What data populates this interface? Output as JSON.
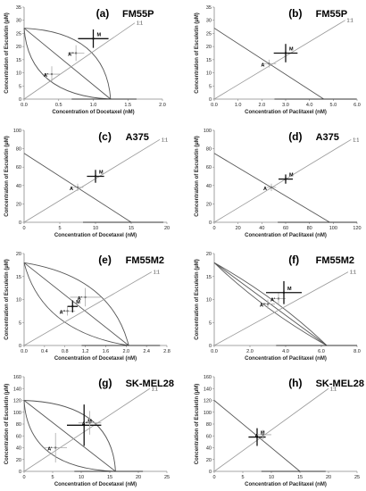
{
  "chart_data": [
    {
      "type": "line",
      "panel": "(a)",
      "cell_line": "FM55P",
      "xlabel": "Concentration of Docetaxel (nM)",
      "ylabel": "Concentration of Esculetin (µM)",
      "xlim": [
        0,
        2.0
      ],
      "ylim": [
        0,
        35
      ],
      "xticks": [
        "0.0",
        "0.5",
        "1.0",
        "1.5",
        "2.0"
      ],
      "yticks": [
        "0",
        "5",
        "10",
        "15",
        "20",
        "25",
        "30",
        "35"
      ],
      "isobole": {
        "x0": 1.25,
        "y0": 27
      },
      "curves": true,
      "curve_bow": 12,
      "ratio_line_end": [
        1.6,
        29
      ],
      "ratio_label": "1:1",
      "points": [
        {
          "label": "A'",
          "x": 0.4,
          "y": 9.5,
          "ex": 0.12,
          "ey": 3.0
        },
        {
          "label": "A''",
          "x": 0.75,
          "y": 17.5,
          "ex": 0.12,
          "ey": 3.0
        },
        {
          "label": "M",
          "x": 1.0,
          "y": 23,
          "ex": 0.22,
          "ey": 3.5
        }
      ]
    },
    {
      "type": "line",
      "panel": "(b)",
      "cell_line": "FM55P",
      "xlabel": "Concentration of Paclitaxel (nM)",
      "ylabel": "Concentration of Esculetin (µM)",
      "xlim": [
        0,
        6.0
      ],
      "ylim": [
        0,
        35
      ],
      "xticks": [
        "0.0",
        "1.0",
        "2.0",
        "3.0",
        "4.0",
        "5.0",
        "6.0"
      ],
      "yticks": [
        "0",
        "5",
        "10",
        "15",
        "20",
        "25",
        "30",
        "35"
      ],
      "isobole": {
        "x0": 4.6,
        "y0": 27
      },
      "curves": false,
      "curve_bow": 0,
      "ratio_line_end": [
        5.5,
        30
      ],
      "ratio_label": "1:1",
      "points": [
        {
          "label": "A",
          "x": 2.3,
          "y": 13.5,
          "ex": 0.3,
          "ey": 1.5
        },
        {
          "label": "M",
          "x": 3.0,
          "y": 17.5,
          "ex": 0.5,
          "ey": 3.5
        }
      ]
    },
    {
      "type": "line",
      "panel": "(c)",
      "cell_line": "A375",
      "xlabel": "Concentration of Docetaxel (nM)",
      "ylabel": "Concentration of Esculetin (µM)",
      "xlim": [
        0,
        20
      ],
      "ylim": [
        0,
        100
      ],
      "xticks": [
        "0",
        "5",
        "10",
        "15",
        "20"
      ],
      "yticks": [
        "0",
        "20",
        "40",
        "60",
        "80",
        "100"
      ],
      "isobole": {
        "x0": 15,
        "y0": 75
      },
      "curves": false,
      "curve_bow": 0,
      "ratio_line_end": [
        19,
        90
      ],
      "ratio_label": "1:1",
      "points": [
        {
          "label": "A",
          "x": 7.5,
          "y": 38,
          "ex": 0.8,
          "ey": 4
        },
        {
          "label": "M",
          "x": 10,
          "y": 50,
          "ex": 1.2,
          "ey": 7
        }
      ]
    },
    {
      "type": "line",
      "panel": "(d)",
      "cell_line": "A375",
      "xlabel": "Concentration of Paclitaxel (nM)",
      "ylabel": "Concentration of Esculetin (µM)",
      "xlim": [
        0,
        120
      ],
      "ylim": [
        0,
        100
      ],
      "xticks": [
        "0",
        "20",
        "40",
        "60",
        "80",
        "100",
        "120"
      ],
      "yticks": [
        "0",
        "20",
        "40",
        "60",
        "80",
        "100"
      ],
      "isobole": {
        "x0": 97,
        "y0": 75
      },
      "curves": false,
      "curve_bow": 0,
      "ratio_line_end": [
        115,
        90
      ],
      "ratio_label": "1:1",
      "points": [
        {
          "label": "A",
          "x": 48,
          "y": 38,
          "ex": 4,
          "ey": 4
        },
        {
          "label": "M",
          "x": 60,
          "y": 47,
          "ex": 6,
          "ey": 5
        }
      ]
    },
    {
      "type": "line",
      "panel": "(e)",
      "cell_line": "FM55M2",
      "xlabel": "Concentration of Docetaxel (nM)",
      "ylabel": "Concentration of Esculetin (µM)",
      "xlim": [
        0,
        2.8
      ],
      "ylim": [
        0,
        20
      ],
      "xticks": [
        "0.0",
        "0.4",
        "0.8",
        "1.2",
        "1.6",
        "2.0",
        "2.4",
        "2.8"
      ],
      "yticks": [
        "0",
        "5",
        "10",
        "15",
        "20"
      ],
      "isobole": {
        "x0": 2.05,
        "y0": 18
      },
      "curves": true,
      "curve_bow": 6,
      "ratio_line_end": [
        2.5,
        16
      ],
      "ratio_label": "1:1",
      "points": [
        {
          "label": "A''",
          "x": 0.85,
          "y": 7.5,
          "ex": 0.15,
          "ey": 1.0
        },
        {
          "label": "M",
          "x": 0.95,
          "y": 8.5,
          "ex": 0.1,
          "ey": 1.3
        },
        {
          "label": "A'",
          "x": 1.2,
          "y": 10.5,
          "ex": 0.3,
          "ey": 2.0
        }
      ]
    },
    {
      "type": "line",
      "panel": "(f)",
      "cell_line": "FM55M2",
      "xlabel": "Concentration of Paclitaxel (nM)",
      "ylabel": "Concentration of Esculetin (µM)",
      "xlim": [
        0,
        8.0
      ],
      "ylim": [
        0,
        20
      ],
      "xticks": [
        "0.0",
        "2.0",
        "4.0",
        "6.0",
        "8.0"
      ],
      "yticks": [
        "0",
        "5",
        "10",
        "15",
        "20"
      ],
      "isobole": {
        "x0": 6.3,
        "y0": 18
      },
      "curves": true,
      "curve_bow": 1.2,
      "ratio_line_end": [
        7.5,
        16
      ],
      "ratio_label": "1:1",
      "points": [
        {
          "label": "A''",
          "x": 3.0,
          "y": 9.0,
          "ex": 0.4,
          "ey": 1.0
        },
        {
          "label": "A'",
          "x": 3.6,
          "y": 10.2,
          "ex": 0.4,
          "ey": 1.3
        },
        {
          "label": "M",
          "x": 3.9,
          "y": 11.5,
          "ex": 1.0,
          "ey": 2.5
        }
      ]
    },
    {
      "type": "line",
      "panel": "(g)",
      "cell_line": "SK-MEL28",
      "xlabel": "Concentration of Docetaxel (nM)",
      "ylabel": "Concentration of Esculetin (µM)",
      "xlim": [
        0,
        25
      ],
      "ylim": [
        0,
        160
      ],
      "xticks": [
        "0",
        "5",
        "10",
        "15",
        "20",
        "25"
      ],
      "yticks": [
        "0",
        "20",
        "40",
        "60",
        "80",
        "100",
        "120",
        "140",
        "160"
      ],
      "isobole": {
        "x0": 16,
        "y0": 120
      },
      "curves": true,
      "curve_bow": 55,
      "ratio_line_end": [
        22,
        140
      ],
      "ratio_label": "1:1",
      "points": [
        {
          "label": "A'",
          "x": 5.5,
          "y": 40,
          "ex": 2.0,
          "ey": 25
        },
        {
          "label": "M",
          "x": 10.5,
          "y": 78,
          "ex": 3.0,
          "ey": 35
        },
        {
          "label": "A''",
          "x": 11.5,
          "y": 82,
          "ex": 2.0,
          "ey": 20
        }
      ]
    },
    {
      "type": "line",
      "panel": "(h)",
      "cell_line": "SK-MEL28",
      "xlabel": "Concentration of Paclitaxel (nM)",
      "ylabel": "Concentration of Esculetin (µM)",
      "xlim": [
        0,
        25
      ],
      "ylim": [
        0,
        160
      ],
      "xticks": [
        "0",
        "5",
        "10",
        "15",
        "20",
        "25"
      ],
      "yticks": [
        "0",
        "20",
        "40",
        "60",
        "80",
        "100",
        "120",
        "140",
        "160"
      ],
      "isobole": {
        "x0": 15,
        "y0": 120
      },
      "curves": false,
      "curve_bow": 0,
      "ratio_line_end": [
        20,
        140
      ],
      "ratio_label": "1:1",
      "points": [
        {
          "label": "M",
          "x": 7.5,
          "y": 58,
          "ex": 1.5,
          "ey": 15
        },
        {
          "label": "A",
          "x": 8.5,
          "y": 62,
          "ex": 1.5,
          "ey": 8
        }
      ]
    }
  ]
}
